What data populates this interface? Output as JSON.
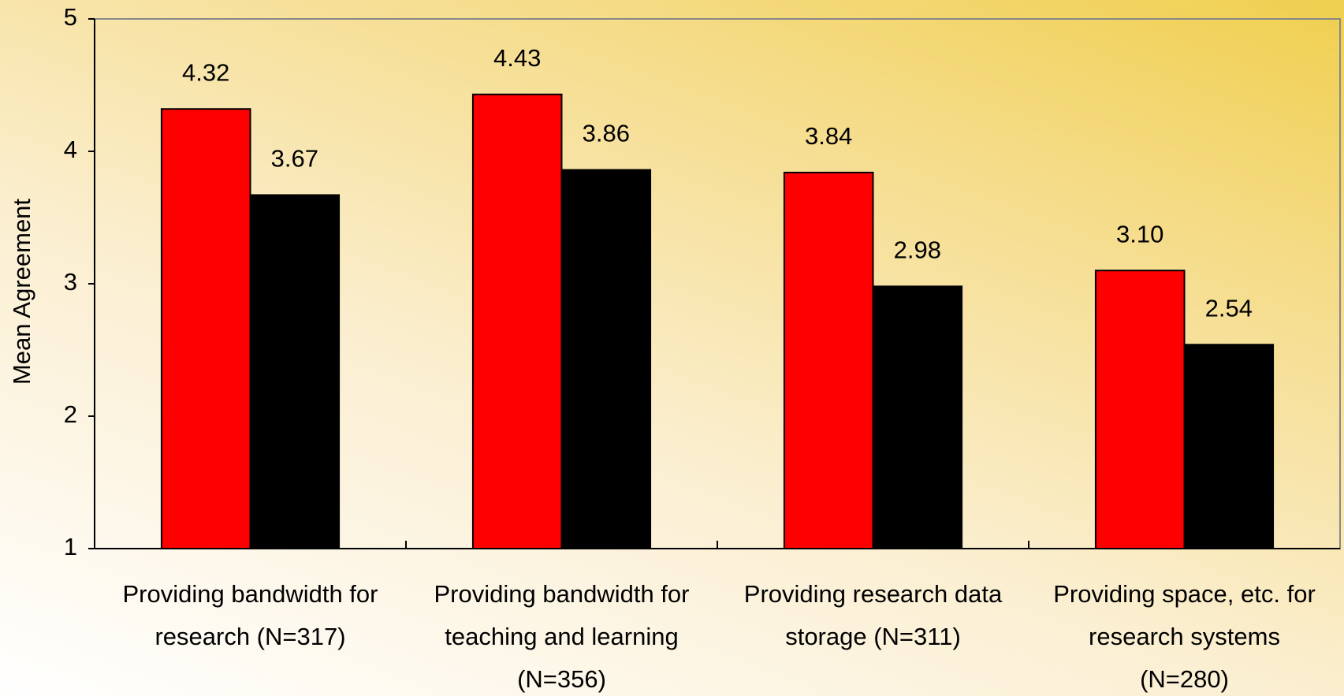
{
  "chart_data": {
    "type": "bar",
    "y_label": "Mean Agreement",
    "categories": [
      [
        "Providing  bandwidth for",
        "research (N=317)"
      ],
      [
        "Providing bandwidth for",
        "teaching and learning",
        "(N=356)"
      ],
      [
        "Providing research data",
        "storage (N=311)"
      ],
      [
        "Providing space, etc. for",
        "research systems",
        "(N=280)"
      ]
    ],
    "series": [
      {
        "color": "#ff0000",
        "values": [
          4.32,
          4.43,
          3.84,
          3.1
        ],
        "value_labels": [
          "4.32",
          "4.43",
          "3.84",
          "3.10"
        ]
      },
      {
        "color": "#000000",
        "values": [
          3.67,
          3.86,
          2.98,
          2.54
        ],
        "value_labels": [
          "3.67",
          "3.86",
          "2.98",
          "2.54"
        ]
      }
    ],
    "ylim": [
      1,
      5
    ],
    "yticks": [
      1,
      2,
      3,
      4,
      5
    ],
    "grid": false
  }
}
